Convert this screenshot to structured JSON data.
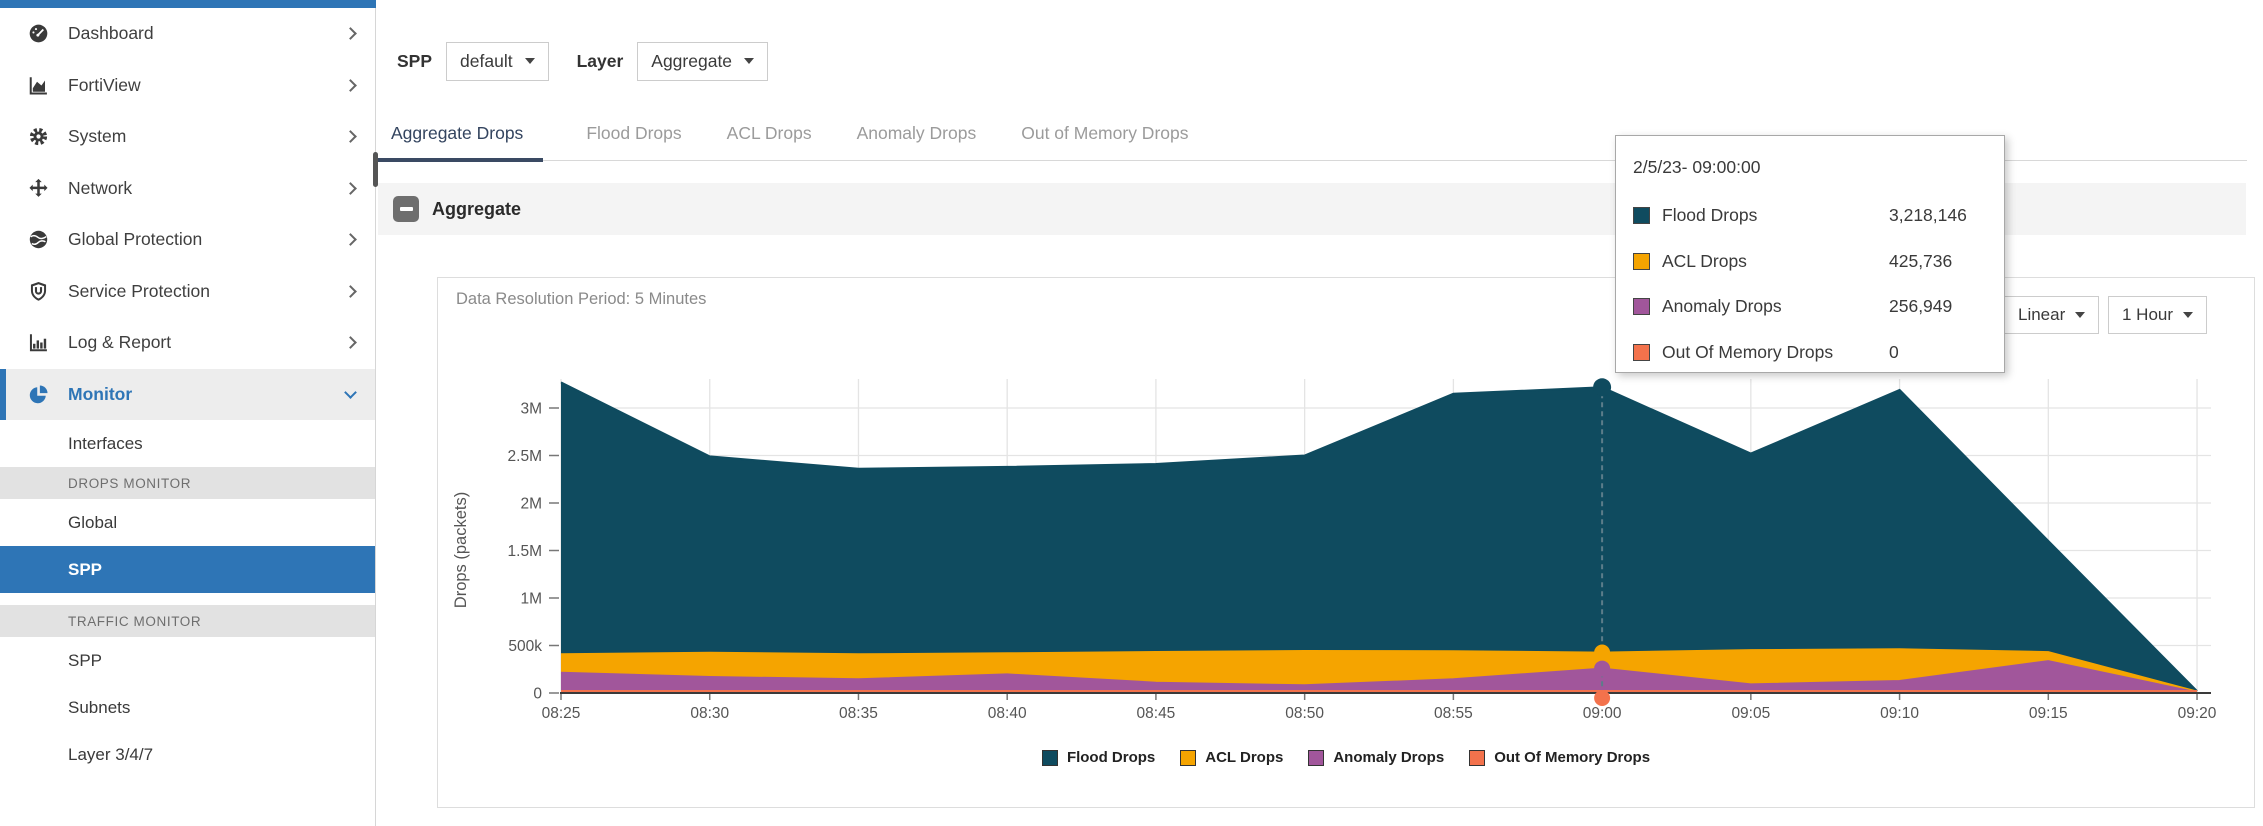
{
  "app": {
    "accent_color": "#2E75B6"
  },
  "sidebar": {
    "items": [
      {
        "label": "Dashboard",
        "icon": "gauge-icon"
      },
      {
        "label": "FortiView",
        "icon": "area-chart-icon"
      },
      {
        "label": "System",
        "icon": "gear-icon"
      },
      {
        "label": "Network",
        "icon": "move-arrows-icon"
      },
      {
        "label": "Global Protection",
        "icon": "globe-icon"
      },
      {
        "label": "Service Protection",
        "icon": "shield-icon"
      },
      {
        "label": "Log & Report",
        "icon": "bar-chart-icon"
      },
      {
        "label": "Monitor",
        "icon": "pie-icon",
        "expanded": true,
        "active": true
      }
    ],
    "subitems": [
      {
        "type": "link",
        "label": "Interfaces"
      },
      {
        "type": "section",
        "label": "DROPS MONITOR"
      },
      {
        "type": "link",
        "label": "Global"
      },
      {
        "type": "link",
        "label": "SPP",
        "selected": true
      },
      {
        "type": "section",
        "label": "TRAFFIC MONITOR"
      },
      {
        "type": "link",
        "label": "SPP"
      },
      {
        "type": "link",
        "label": "Subnets"
      },
      {
        "type": "link",
        "label": "Layer 3/4/7"
      }
    ]
  },
  "toolbar": {
    "spp_label": "SPP",
    "spp_value": "default",
    "layer_label": "Layer",
    "layer_value": "Aggregate"
  },
  "tabs": [
    {
      "label": "Aggregate Drops",
      "active": true
    },
    {
      "label": "Flood Drops",
      "active": false
    },
    {
      "label": "ACL Drops",
      "active": false
    },
    {
      "label": "Anomaly Drops",
      "active": false
    },
    {
      "label": "Out of Memory Drops",
      "active": false
    }
  ],
  "panel": {
    "title": "Aggregate"
  },
  "chart_card": {
    "resolution": "Data Resolution Period: 5 Minutes",
    "scale_button": "Linear",
    "range_button": "1 Hour"
  },
  "tooltip": {
    "title": "2/5/23- 09:00:00",
    "rows": [
      {
        "label": "Flood Drops",
        "value": "3,218,146",
        "color": "#0F4B5F"
      },
      {
        "label": "ACL Drops",
        "value": "425,736",
        "color": "#F5A400"
      },
      {
        "label": "Anomaly Drops",
        "value": "256,949",
        "color": "#A1569B"
      },
      {
        "label": "Out Of Memory Drops",
        "value": "0",
        "color": "#F3724C"
      }
    ]
  },
  "chart_data": {
    "type": "area",
    "title": "Aggregate",
    "xlabel": "",
    "ylabel": "Drops (packets)",
    "x": [
      "08:25",
      "08:30",
      "08:35",
      "08:40",
      "08:45",
      "08:50",
      "08:55",
      "09:00",
      "09:05",
      "09:10",
      "09:15",
      "09:20"
    ],
    "series": [
      {
        "name": "Flood Drops",
        "color": "#0F4B5F",
        "values": [
          3270000,
          2490000,
          2360000,
          2380000,
          2410000,
          2500000,
          3150000,
          3218146,
          2520000,
          3190000,
          1600000,
          20000
        ]
      },
      {
        "name": "ACL Drops",
        "color": "#F5A400",
        "values": [
          407000,
          424000,
          407000,
          418000,
          432000,
          442000,
          440000,
          425736,
          452000,
          460000,
          430000,
          15000
        ]
      },
      {
        "name": "Anomaly Drops",
        "color": "#A1569B",
        "values": [
          214000,
          168000,
          144000,
          196000,
          108000,
          81000,
          144000,
          256949,
          91000,
          126000,
          336000,
          5000
        ]
      },
      {
        "name": "Out Of Memory Drops",
        "color": "#F3724C",
        "values": [
          0,
          0,
          0,
          0,
          0,
          0,
          0,
          0,
          0,
          0,
          0,
          0
        ]
      }
    ],
    "overlaid_not_stacked": true,
    "ylim": [
      0,
      3500000
    ],
    "yticks": [
      {
        "label": "0",
        "value": 0
      },
      {
        "label": "500k",
        "value": 500000
      },
      {
        "label": "1M",
        "value": 1000000
      },
      {
        "label": "1.5M",
        "value": 1500000
      },
      {
        "label": "2M",
        "value": 2000000
      },
      {
        "label": "2.5M",
        "value": 2500000
      },
      {
        "label": "3M",
        "value": 3000000
      }
    ],
    "grid": true,
    "legend_position": "bottom",
    "marker": {
      "x_index": 7,
      "label": "2/5/23- 09:00:00"
    }
  }
}
